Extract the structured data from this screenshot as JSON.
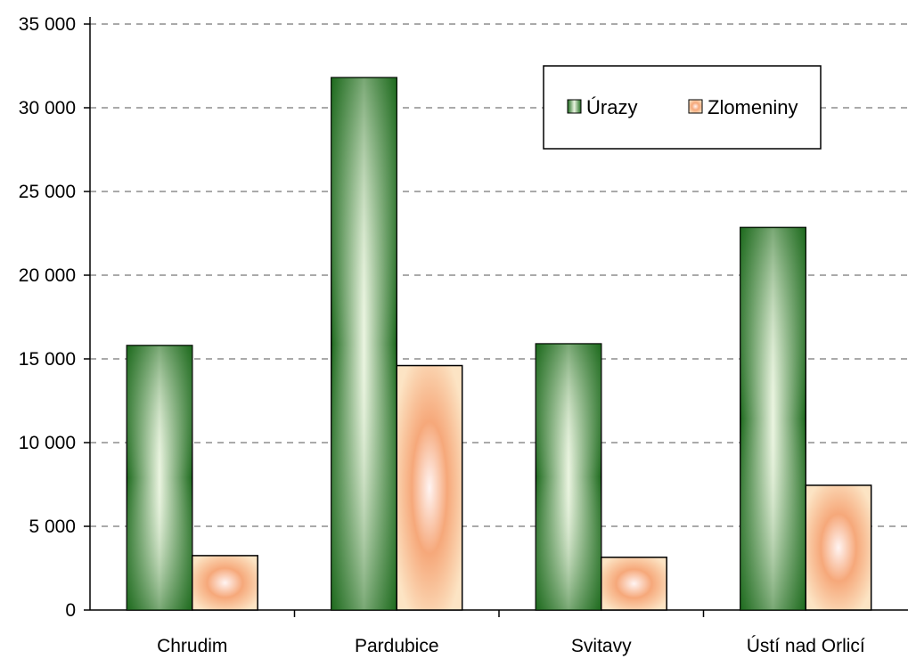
{
  "chart_data": {
    "type": "bar",
    "categories": [
      "Chrudim",
      "Pardubice",
      "Svitavy",
      "Ústí nad Orlicí"
    ],
    "series": [
      {
        "name": "Úrazy",
        "values": [
          15800,
          31800,
          15900,
          22850
        ],
        "color": "#1f6b1f"
      },
      {
        "name": "Zlomeniny",
        "values": [
          3250,
          14600,
          3150,
          7450
        ],
        "color": "#f4a67a"
      }
    ],
    "ylim": [
      0,
      35000
    ],
    "yticks": [
      0,
      5000,
      10000,
      15000,
      20000,
      25000,
      30000,
      35000
    ],
    "ytick_labels": [
      "0",
      "5 000",
      "10 000",
      "15 000",
      "20 000",
      "25 000",
      "30 000",
      "35 000"
    ],
    "grid": "horizontal-dashed",
    "legend_position": "top-right"
  }
}
